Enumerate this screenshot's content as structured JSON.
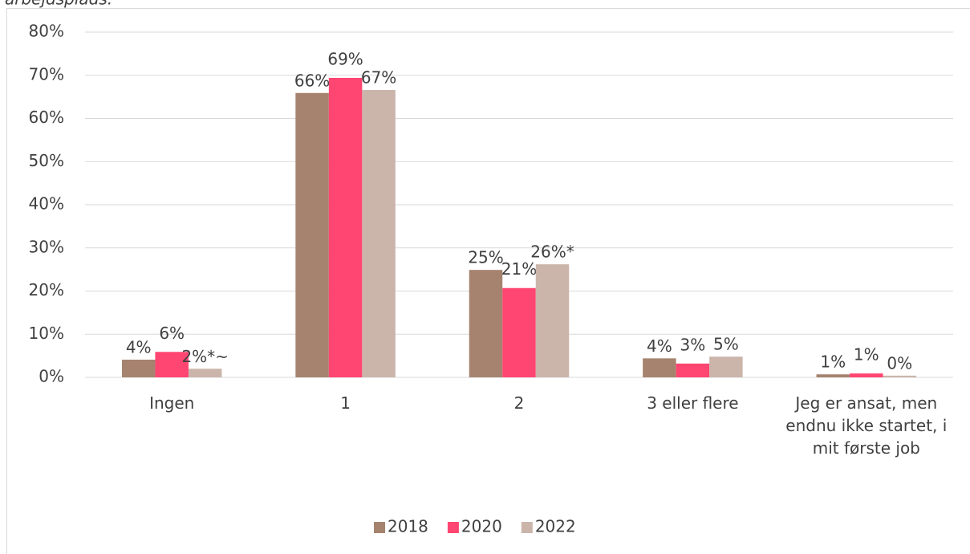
{
  "chart_data": {
    "type": "bar",
    "title": "arbejdsplads.",
    "categories": [
      "Ingen",
      "1",
      "2",
      "3 eller flere",
      "Jeg er ansat, men endnu ikke startet, i mit første job"
    ],
    "series": [
      {
        "name": "2018",
        "color": "#a5836f",
        "values": [
          4.1,
          65.9,
          24.9,
          4.4,
          0.7
        ],
        "value_labels": [
          "4%",
          "66%",
          "25%",
          "4%",
          "1%"
        ]
      },
      {
        "name": "2020",
        "color": "#ff4571",
        "values": [
          5.9,
          69.4,
          20.7,
          3.2,
          0.9
        ],
        "value_labels": [
          "6%",
          "69%",
          "21%",
          "3%",
          "1%"
        ]
      },
      {
        "name": "2022",
        "color": "#cbb5ab",
        "values": [
          2.0,
          66.6,
          26.2,
          4.8,
          0.4
        ],
        "value_labels": [
          "2%*~",
          "67%",
          "26%*",
          "5%",
          "0%"
        ]
      }
    ],
    "ylim": [
      0,
      80
    ],
    "yticks": [
      {
        "value": 0,
        "label": "0%"
      },
      {
        "value": 10,
        "label": "10%"
      },
      {
        "value": 20,
        "label": "20%"
      },
      {
        "value": 30,
        "label": "30%"
      },
      {
        "value": 40,
        "label": "40%"
      },
      {
        "value": 50,
        "label": "50%"
      },
      {
        "value": 60,
        "label": "60%"
      },
      {
        "value": 70,
        "label": "70%"
      },
      {
        "value": 80,
        "label": "80%"
      }
    ],
    "grid": true,
    "legend": "bottom"
  }
}
